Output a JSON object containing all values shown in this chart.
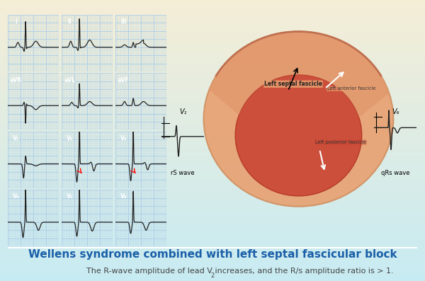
{
  "title": "Wellens syndrome combined with left septal fascicular block",
  "subtitle": "The R-wave amplitude of lead V₂ increases, and the R/s amplitude ratio is > 1.",
  "bg_color_top": "#c8e8f0",
  "bg_color_bottom": "#f5f0d8",
  "ecg_grid_bg": "#ddeef8",
  "ecg_grid_line": "#b0d0e8",
  "lead_labels": [
    "I",
    "II",
    "III",
    "aVR",
    "aVL",
    "aVF",
    "V₁",
    "V₂",
    "V₃",
    "V₄",
    "V₅",
    "V₆"
  ],
  "label_bg": "#3399cc",
  "label_fg": "#ffffff",
  "title_color": "#1a5fa8",
  "subtitle_color": "#444444",
  "heart_color_outer": "#e8a080",
  "heart_color_inner": "#c85030"
}
